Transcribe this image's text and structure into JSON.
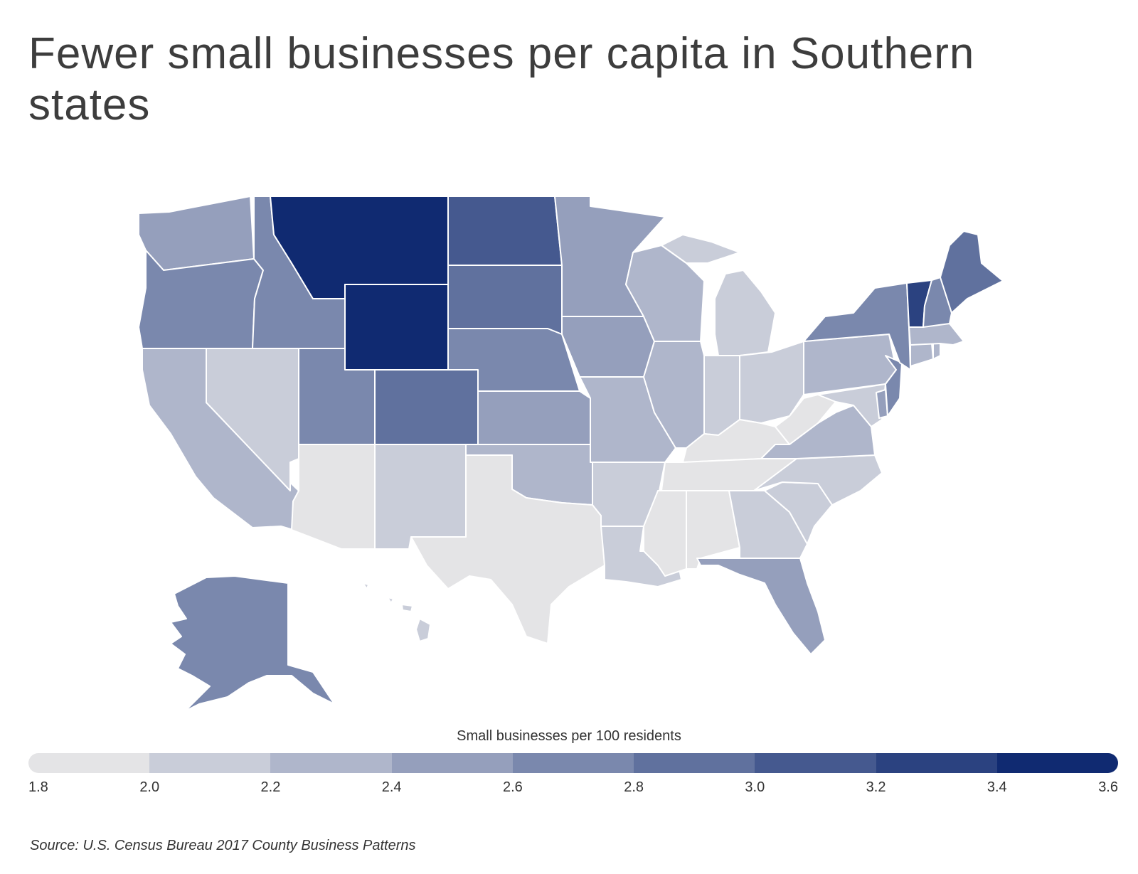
{
  "title": "Fewer small businesses per capita in Southern states",
  "legend": {
    "title": "Small businesses per 100 residents",
    "ticks": [
      "1.8",
      "2.0",
      "2.2",
      "2.4",
      "2.6",
      "2.8",
      "3.0",
      "3.2",
      "3.4",
      "3.6"
    ],
    "colors": [
      "#e4e4e6",
      "#c9cdd9",
      "#afb6cb",
      "#959fbc",
      "#7a88ad",
      "#60719e",
      "#45598f",
      "#2b4280",
      "#102a71"
    ]
  },
  "source": "Source: U.S. Census Bureau 2017 County Business Patterns",
  "states": [
    {
      "code": "WA",
      "bin": 3
    },
    {
      "code": "OR",
      "bin": 4
    },
    {
      "code": "CA",
      "bin": 2
    },
    {
      "code": "ID",
      "bin": 4
    },
    {
      "code": "NV",
      "bin": 1
    },
    {
      "code": "MT",
      "bin": 8
    },
    {
      "code": "WY",
      "bin": 8
    },
    {
      "code": "UT",
      "bin": 4
    },
    {
      "code": "AZ",
      "bin": 0
    },
    {
      "code": "CO",
      "bin": 5
    },
    {
      "code": "NM",
      "bin": 1
    },
    {
      "code": "ND",
      "bin": 6
    },
    {
      "code": "SD",
      "bin": 5
    },
    {
      "code": "NE",
      "bin": 4
    },
    {
      "code": "KS",
      "bin": 3
    },
    {
      "code": "OK",
      "bin": 2
    },
    {
      "code": "TX",
      "bin": 0
    },
    {
      "code": "MN",
      "bin": 3
    },
    {
      "code": "IA",
      "bin": 3
    },
    {
      "code": "MO",
      "bin": 2
    },
    {
      "code": "AR",
      "bin": 1
    },
    {
      "code": "LA",
      "bin": 1
    },
    {
      "code": "WI",
      "bin": 2
    },
    {
      "code": "IL",
      "bin": 2
    },
    {
      "code": "MI",
      "bin": 1
    },
    {
      "code": "IN",
      "bin": 1
    },
    {
      "code": "OH",
      "bin": 1
    },
    {
      "code": "KY",
      "bin": 0
    },
    {
      "code": "TN",
      "bin": 0
    },
    {
      "code": "MS",
      "bin": 0
    },
    {
      "code": "AL",
      "bin": 0
    },
    {
      "code": "GA",
      "bin": 1
    },
    {
      "code": "FL",
      "bin": 3
    },
    {
      "code": "SC",
      "bin": 1
    },
    {
      "code": "NC",
      "bin": 1
    },
    {
      "code": "VA",
      "bin": 2
    },
    {
      "code": "WV",
      "bin": 0
    },
    {
      "code": "PA",
      "bin": 2
    },
    {
      "code": "NY",
      "bin": 4
    },
    {
      "code": "VT",
      "bin": 7
    },
    {
      "code": "NH",
      "bin": 4
    },
    {
      "code": "ME",
      "bin": 5
    },
    {
      "code": "MA",
      "bin": 2
    },
    {
      "code": "CT",
      "bin": 2
    },
    {
      "code": "RI",
      "bin": 2
    },
    {
      "code": "NJ",
      "bin": 4
    },
    {
      "code": "DE",
      "bin": 3
    },
    {
      "code": "MD",
      "bin": 1
    },
    {
      "code": "AK",
      "bin": 4
    },
    {
      "code": "HI",
      "bin": 1
    }
  ]
}
